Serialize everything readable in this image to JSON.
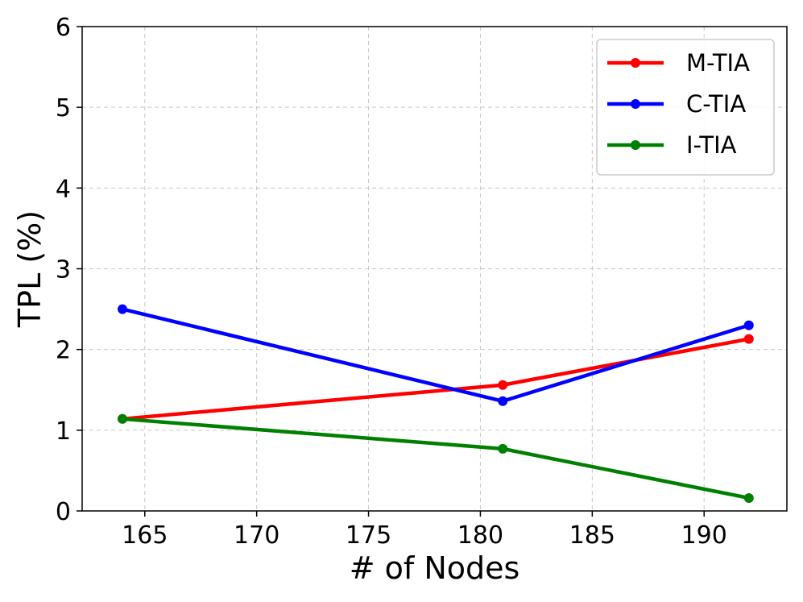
{
  "chart_data": {
    "type": "line",
    "xlabel": "# of Nodes",
    "ylabel": "TPL (%)",
    "xlim": [
      162.2,
      193.7
    ],
    "ylim": [
      0,
      6
    ],
    "xticks": [
      "165",
      "170",
      "175",
      "180",
      "185",
      "190"
    ],
    "yticks": [
      "0",
      "1",
      "2",
      "3",
      "4",
      "5",
      "6"
    ],
    "grid": true,
    "legend_position": "top-right",
    "x": [
      164,
      181,
      192
    ],
    "series": [
      {
        "name": "M-TIA",
        "color": "#ff0000",
        "values": [
          1.14,
          1.56,
          2.13
        ]
      },
      {
        "name": "C-TIA",
        "color": "#0000ff",
        "values": [
          2.5,
          1.36,
          2.3
        ]
      },
      {
        "name": "I-TIA",
        "color": "#008000",
        "values": [
          1.14,
          0.77,
          0.16
        ]
      }
    ]
  }
}
